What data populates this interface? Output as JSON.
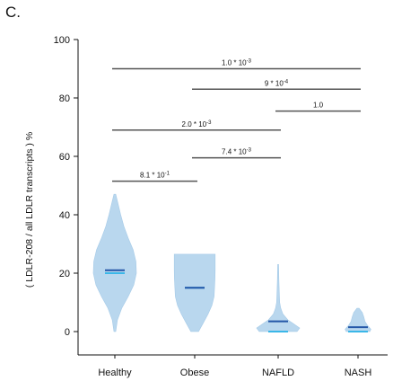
{
  "panel_label": "C.",
  "chart_data": {
    "type": "violin",
    "ylabel": "( LDLR-208 / all LDLR transcripts ) %",
    "ylim": [
      -8,
      100
    ],
    "yticks": [
      0,
      20,
      40,
      60,
      80,
      100
    ],
    "categories": [
      "Healthy",
      "Obese",
      "NAFLD",
      "NASH"
    ],
    "groups": [
      {
        "name": "Healthy",
        "min": 0,
        "max": 47,
        "mean": 21,
        "median": 20,
        "shape": [
          [
            0,
            0.04
          ],
          [
            4,
            0.12
          ],
          [
            8,
            0.32
          ],
          [
            12,
            0.62
          ],
          [
            16,
            0.88
          ],
          [
            20,
            1.0
          ],
          [
            24,
            0.98
          ],
          [
            28,
            0.85
          ],
          [
            32,
            0.62
          ],
          [
            36,
            0.42
          ],
          [
            40,
            0.27
          ],
          [
            44,
            0.14
          ],
          [
            47,
            0.04
          ]
        ]
      },
      {
        "name": "Obese",
        "min": 0,
        "max": 26.5,
        "mean": 15,
        "median": 15,
        "shape": [
          [
            0,
            0.18
          ],
          [
            3,
            0.4
          ],
          [
            6,
            0.62
          ],
          [
            9,
            0.8
          ],
          [
            12,
            0.9
          ],
          [
            15,
            0.92
          ],
          [
            18,
            0.94
          ],
          [
            21,
            0.95
          ],
          [
            24,
            0.95
          ],
          [
            26.5,
            0.95
          ]
        ]
      },
      {
        "name": "NAFLD",
        "min": 0,
        "max": 23,
        "mean": 3.5,
        "median": 0,
        "shape": [
          [
            0,
            0.88
          ],
          [
            1.2,
            1.0
          ],
          [
            2.5,
            0.75
          ],
          [
            4,
            0.45
          ],
          [
            6,
            0.22
          ],
          [
            8,
            0.12
          ],
          [
            10,
            0.07
          ],
          [
            14,
            0.05
          ],
          [
            18,
            0.035
          ],
          [
            23,
            0.02
          ]
        ]
      },
      {
        "name": "NASH",
        "min": 0,
        "max": 8,
        "mean": 1.5,
        "median": 0,
        "shape": [
          [
            0,
            0.55
          ],
          [
            0.8,
            0.6
          ],
          [
            2,
            0.45
          ],
          [
            3.5,
            0.32
          ],
          [
            5,
            0.27
          ],
          [
            6.5,
            0.2
          ],
          [
            8,
            0.05
          ]
        ]
      }
    ],
    "comparisons": [
      {
        "from": "Healthy",
        "to": "NASH",
        "y": 90,
        "label": "1.0 * 10",
        "exp": "-3"
      },
      {
        "from": "Obese",
        "to": "NASH",
        "y": 83,
        "label": "9 * 10",
        "exp": "-4"
      },
      {
        "from": "NAFLD",
        "to": "NASH",
        "y": 75.5,
        "label": "1.0",
        "exp": ""
      },
      {
        "from": "Healthy",
        "to": "NAFLD",
        "y": 69,
        "label": "2.0 * 10",
        "exp": "-3"
      },
      {
        "from": "Obese",
        "to": "NAFLD",
        "y": 59.5,
        "label": "7.4 * 10",
        "exp": "-3"
      },
      {
        "from": "Healthy",
        "to": "Obese",
        "y": 51.5,
        "label": "8.1 * 10",
        "exp": "-1"
      }
    ],
    "colors": {
      "violin": "#b9d7ee",
      "mean_line": "#2457a8",
      "median_line": "#3bb7e8",
      "axis": "#111111",
      "bracket": "#555555"
    }
  }
}
